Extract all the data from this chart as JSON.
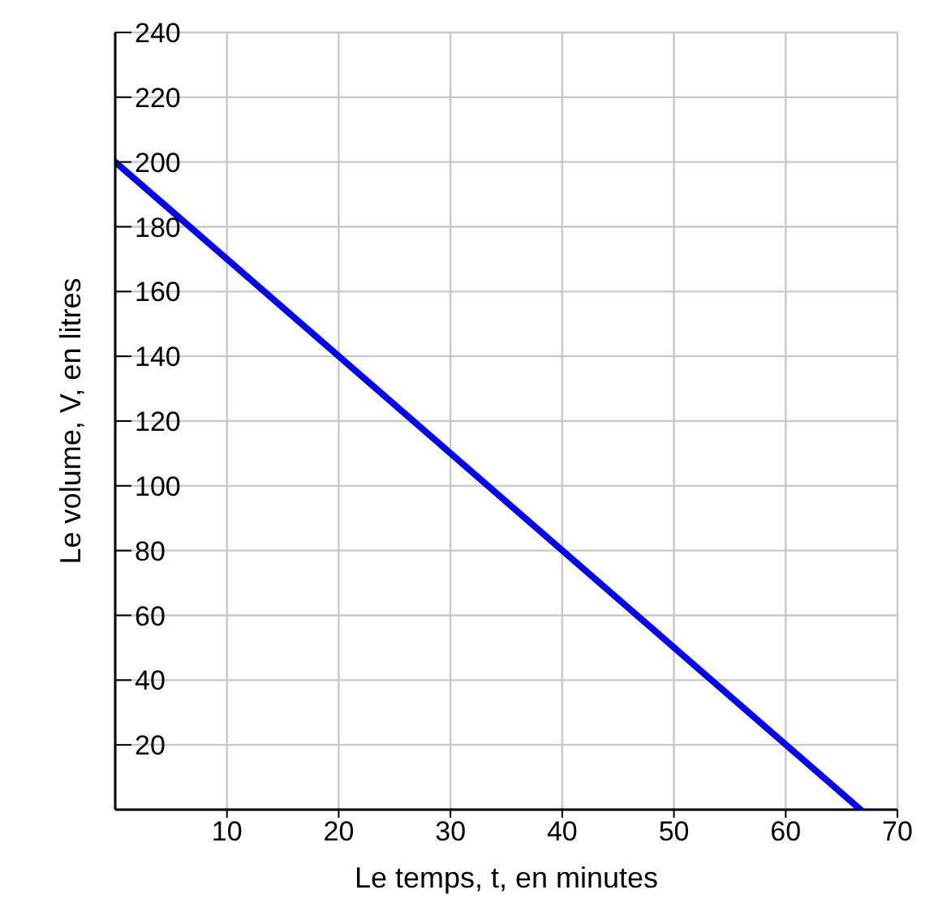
{
  "chart_data": {
    "type": "line",
    "xlabel": "Le temps, t, en minutes",
    "ylabel": "Le volume, V, en litres",
    "x": [
      0,
      66.7
    ],
    "series": [
      {
        "color": "#0000ff",
        "values": [
          200,
          0
        ]
      }
    ],
    "xlim": [
      0,
      70
    ],
    "xticks": [
      10,
      20,
      30,
      40,
      50,
      60,
      70
    ],
    "ylim": [
      0,
      240
    ],
    "yticks": [
      20,
      40,
      60,
      80,
      100,
      120,
      140,
      160,
      180,
      200,
      220,
      240
    ],
    "grid": true,
    "marker": "none",
    "line_style": "solid"
  }
}
